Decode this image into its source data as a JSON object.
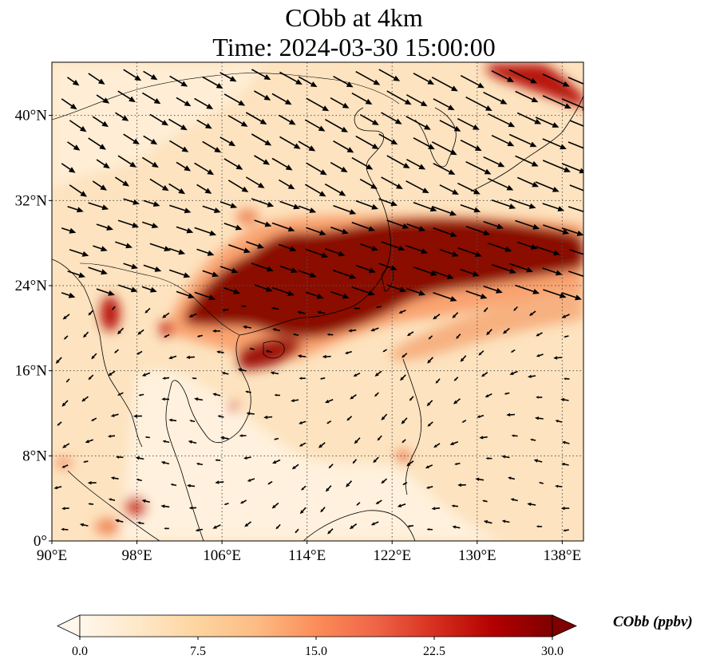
{
  "title_line1": "CObb at 4km",
  "title_line2": "Time: 2024-03-30 15:00:00",
  "colors": {
    "cmap": [
      "#fff7ec",
      "#fee8c8",
      "#fdd49e",
      "#fdbb84",
      "#fc8d59",
      "#ef6548",
      "#d7301f",
      "#b30000",
      "#7f0000"
    ],
    "background": "#fde3bf",
    "coast": "#000000",
    "grid": "#555555",
    "arrow": "#000000"
  },
  "map": {
    "lon_ticks": [
      {
        "lon": 90,
        "label": "90°E"
      },
      {
        "lon": 98,
        "label": "98°E"
      },
      {
        "lon": 106,
        "label": "106°E"
      },
      {
        "lon": 114,
        "label": "114°E"
      },
      {
        "lon": 122,
        "label": "122°E"
      },
      {
        "lon": 130,
        "label": "130°E"
      },
      {
        "lon": 138,
        "label": "138°E"
      }
    ],
    "lat_ticks": [
      {
        "lat": 0,
        "label": "0°"
      },
      {
        "lat": 8,
        "label": "8°N"
      },
      {
        "lat": 16,
        "label": "16°N"
      },
      {
        "lat": 24,
        "label": "24°N"
      },
      {
        "lat": 32,
        "label": "32°N"
      },
      {
        "lat": 40,
        "label": "40°N"
      }
    ],
    "lon_range": [
      90,
      140
    ],
    "lat_range": [
      0,
      45
    ],
    "gridlines": true
  },
  "colorbar": {
    "title": "CObb (ppbv)",
    "min": 0,
    "max": 30,
    "extend": "both",
    "ticks": [
      {
        "value": 0,
        "label": "0.0"
      },
      {
        "value": 7.5,
        "label": "7.5"
      },
      {
        "value": 15,
        "label": "15.0"
      },
      {
        "value": 22.5,
        "label": "22.5"
      },
      {
        "value": 30,
        "label": "30.0"
      }
    ]
  }
}
